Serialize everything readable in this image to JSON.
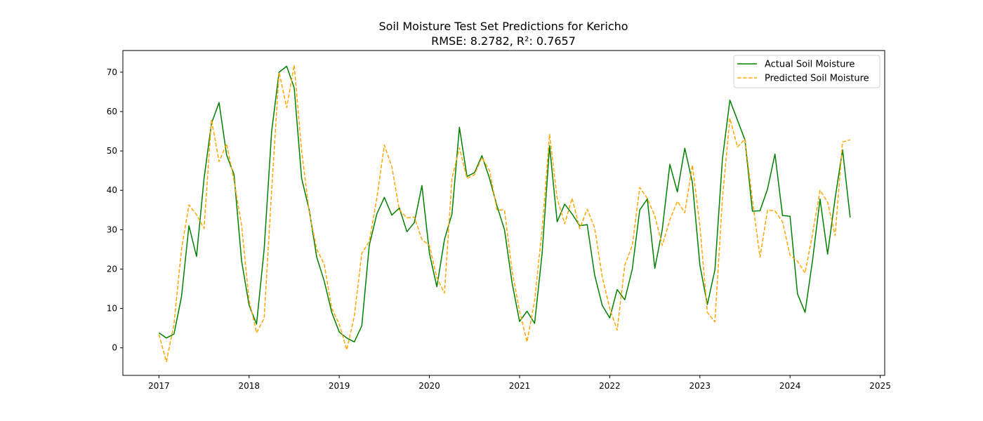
{
  "chart_data": {
    "type": "line",
    "title": "Soil Moisture Test Set Predictions for Kericho",
    "subtitle": "RMSE: 8.2782, R²: 0.7657",
    "xlabel": "",
    "ylabel": "",
    "xlim": [
      2016.6,
      2025.05
    ],
    "ylim": [
      -7,
      75.5
    ],
    "x_ticks": [
      2017,
      2018,
      2019,
      2020,
      2021,
      2022,
      2023,
      2024,
      2025
    ],
    "y_ticks": [
      0,
      10,
      20,
      30,
      40,
      50,
      60,
      70
    ],
    "grid": false,
    "legend_position": "top-right",
    "series": [
      {
        "name": "Actual Soil Moisture",
        "color": "#008000",
        "style": "solid",
        "x": [
          2017.0,
          2017.083,
          2017.167,
          2017.25,
          2017.333,
          2017.417,
          2017.5,
          2017.583,
          2017.667,
          2017.75,
          2017.833,
          2017.917,
          2018.0,
          2018.083,
          2018.167,
          2018.25,
          2018.333,
          2018.417,
          2018.5,
          2018.583,
          2018.667,
          2018.75,
          2018.833,
          2018.917,
          2019.0,
          2019.083,
          2019.167,
          2019.25,
          2019.333,
          2019.417,
          2019.5,
          2019.583,
          2019.667,
          2019.75,
          2019.833,
          2019.917,
          2020.0,
          2020.083,
          2020.167,
          2020.25,
          2020.333,
          2020.417,
          2020.5,
          2020.583,
          2020.667,
          2020.75,
          2020.833,
          2020.917,
          2021.0,
          2021.083,
          2021.167,
          2021.25,
          2021.333,
          2021.417,
          2021.5,
          2021.583,
          2021.667,
          2021.75,
          2021.833,
          2021.917,
          2022.0,
          2022.083,
          2022.167,
          2022.25,
          2022.333,
          2022.417,
          2022.5,
          2022.583,
          2022.667,
          2022.75,
          2022.833,
          2022.917,
          2023.0,
          2023.083,
          2023.167,
          2023.25,
          2023.333,
          2023.417,
          2023.5,
          2023.583,
          2023.667,
          2023.75,
          2023.833,
          2023.917,
          2024.0,
          2024.083,
          2024.167,
          2024.25,
          2024.333,
          2024.417,
          2024.5,
          2024.583,
          2024.667
        ],
        "y": [
          3.8,
          2.5,
          3.5,
          13,
          31,
          23.2,
          43,
          57,
          62.3,
          49,
          44,
          22,
          10.8,
          6,
          25,
          55,
          70,
          71.5,
          66,
          43,
          35,
          23,
          17,
          9,
          4,
          2.5,
          1.5,
          5.6,
          26,
          34,
          38.2,
          33.7,
          35.5,
          29.5,
          31.8,
          41.2,
          24,
          15.5,
          27.5,
          34,
          56,
          43.5,
          44.5,
          48.8,
          43,
          36,
          30,
          16.5,
          6.7,
          9.3,
          6.2,
          24,
          51.3,
          32,
          36.5,
          34,
          31,
          31.3,
          18.5,
          10.8,
          7.6,
          14.8,
          12.2,
          20,
          35,
          37.8,
          20.2,
          30,
          46.6,
          39.6,
          50.7,
          42,
          21,
          11,
          19.8,
          48,
          62.9,
          57.8,
          52.8,
          34.7,
          34.8,
          40.3,
          49.2,
          33.6,
          33.4,
          13.7,
          9,
          22.3,
          37.8,
          23.8,
          38,
          50.3,
          33.1
        ]
      },
      {
        "name": "Predicted Soil Moisture",
        "color": "#FFA500",
        "style": "dashed",
        "x": [
          2017.0,
          2017.083,
          2017.167,
          2017.25,
          2017.333,
          2017.417,
          2017.5,
          2017.583,
          2017.667,
          2017.75,
          2017.833,
          2017.917,
          2018.0,
          2018.083,
          2018.167,
          2018.25,
          2018.333,
          2018.417,
          2018.5,
          2018.583,
          2018.667,
          2018.75,
          2018.833,
          2018.917,
          2019.0,
          2019.083,
          2019.167,
          2019.25,
          2019.333,
          2019.417,
          2019.5,
          2019.583,
          2019.667,
          2019.75,
          2019.833,
          2019.917,
          2020.0,
          2020.083,
          2020.167,
          2020.25,
          2020.333,
          2020.417,
          2020.5,
          2020.583,
          2020.667,
          2020.75,
          2020.833,
          2020.917,
          2021.0,
          2021.083,
          2021.167,
          2021.25,
          2021.333,
          2021.417,
          2021.5,
          2021.583,
          2021.667,
          2021.75,
          2021.833,
          2021.917,
          2022.0,
          2022.083,
          2022.167,
          2022.25,
          2022.333,
          2022.417,
          2022.5,
          2022.583,
          2022.667,
          2022.75,
          2022.833,
          2022.917,
          2023.0,
          2023.083,
          2023.167,
          2023.25,
          2023.333,
          2023.417,
          2023.5,
          2023.583,
          2023.667,
          2023.75,
          2023.833,
          2023.917,
          2024.0,
          2024.083,
          2024.167,
          2024.25,
          2024.333,
          2024.417,
          2024.5,
          2024.583,
          2024.667
        ],
        "y": [
          3.4,
          -3.5,
          6,
          25,
          36.3,
          33.8,
          30.3,
          58,
          47.3,
          51.8,
          42.5,
          31,
          12,
          3.8,
          7.5,
          40,
          70,
          61,
          71.8,
          50,
          34.5,
          25,
          21.3,
          10,
          6,
          -0.5,
          8,
          24,
          27,
          38,
          51.5,
          46,
          35,
          33,
          33.2,
          27.5,
          26,
          17.8,
          13.9,
          43,
          50.8,
          43,
          44,
          48.3,
          45,
          35,
          35,
          19.5,
          9.3,
          1.5,
          12,
          30,
          54.2,
          38,
          31.5,
          38,
          30.3,
          35.2,
          30.5,
          18,
          10,
          4.5,
          21,
          26,
          40.7,
          38,
          33.5,
          26,
          32.5,
          37.2,
          34.3,
          46.4,
          31,
          9,
          6.6,
          38,
          58.3,
          51,
          53,
          37.5,
          23,
          35,
          34.8,
          32,
          23.5,
          22,
          19,
          29,
          40,
          37,
          28.5,
          52.3,
          52.8
        ]
      }
    ]
  }
}
